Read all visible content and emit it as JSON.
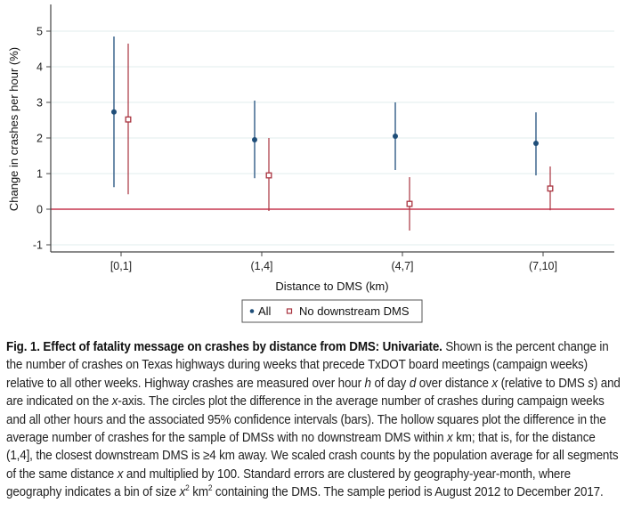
{
  "chart_data": {
    "type": "scatter",
    "subtype": "point-with-confidence-intervals",
    "title": "",
    "xlabel": "Distance to DMS (km)",
    "ylabel": "Change in crashes per hour (%)",
    "categories": [
      "[0,1]",
      "(1,4]",
      "(4,7]",
      "(7,10]"
    ],
    "ylim": [
      -1.2,
      5.7
    ],
    "yticks": [
      -1,
      0,
      1,
      2,
      3,
      4,
      5
    ],
    "ytick_labels": [
      "-1",
      "0",
      "1",
      "2",
      "3",
      "4",
      "5"
    ],
    "grid": true,
    "reference_line": {
      "y": 0,
      "color": "#c8384f"
    },
    "legend": {
      "placement": "bottom-center",
      "entries": [
        "All",
        "No downstream DMS"
      ]
    },
    "series": [
      {
        "name": "All",
        "marker": "filled-circle",
        "color": "#1f4e79",
        "values": [
          2.73,
          1.95,
          2.05,
          1.85
        ],
        "ci_low": [
          0.62,
          0.87,
          1.1,
          0.95
        ],
        "ci_high": [
          4.85,
          3.05,
          3.0,
          2.72
        ]
      },
      {
        "name": "No downstream DMS",
        "marker": "hollow-square",
        "color": "#a8323e",
        "values": [
          2.52,
          0.95,
          0.15,
          0.58
        ],
        "ci_low": [
          0.42,
          -0.05,
          -0.6,
          -0.03
        ],
        "ci_high": [
          4.65,
          2.0,
          0.9,
          1.2
        ]
      }
    ]
  },
  "caption": {
    "bold": "Fig. 1. Effect of fatality message on crashes by distance from DMS: Univariate.",
    "seg1": " Shown is the percent change in the number of crashes on Texas highways during weeks that precede TxDOT board meetings (campaign weeks) relative to all other weeks. Highway crashes are measured over hour ",
    "h": "h",
    "seg2": " of day ",
    "d": "d",
    "seg3": " over distance ",
    "x1": "x",
    "seg4": " (relative to DMS ",
    "s": "s",
    "seg5": ") and are indicated on the ",
    "x2": "x",
    "seg6": "-axis. The circles plot the difference in the average number of crashes during campaign weeks and all other hours and the associated 95% confidence intervals (bars). The hollow squares plot the difference in the average number of crashes for the sample of DMSs with no downstream DMS within ",
    "x3": "x",
    "seg7": " km; that is, for the distance (1,4], the closest downstream DMS is ≥4 km away. We scaled crash counts by the population average for all segments of the same distance ",
    "x4": "x",
    "seg8": " and multiplied by 100. Standard errors are clustered by geography-year-month, where geography indicates a bin of size ",
    "x5": "x",
    "sup1": "2",
    "seg9": " km",
    "sup2": "2",
    "seg10": " containing the DMS. The sample period is August 2012 to December 2017."
  }
}
